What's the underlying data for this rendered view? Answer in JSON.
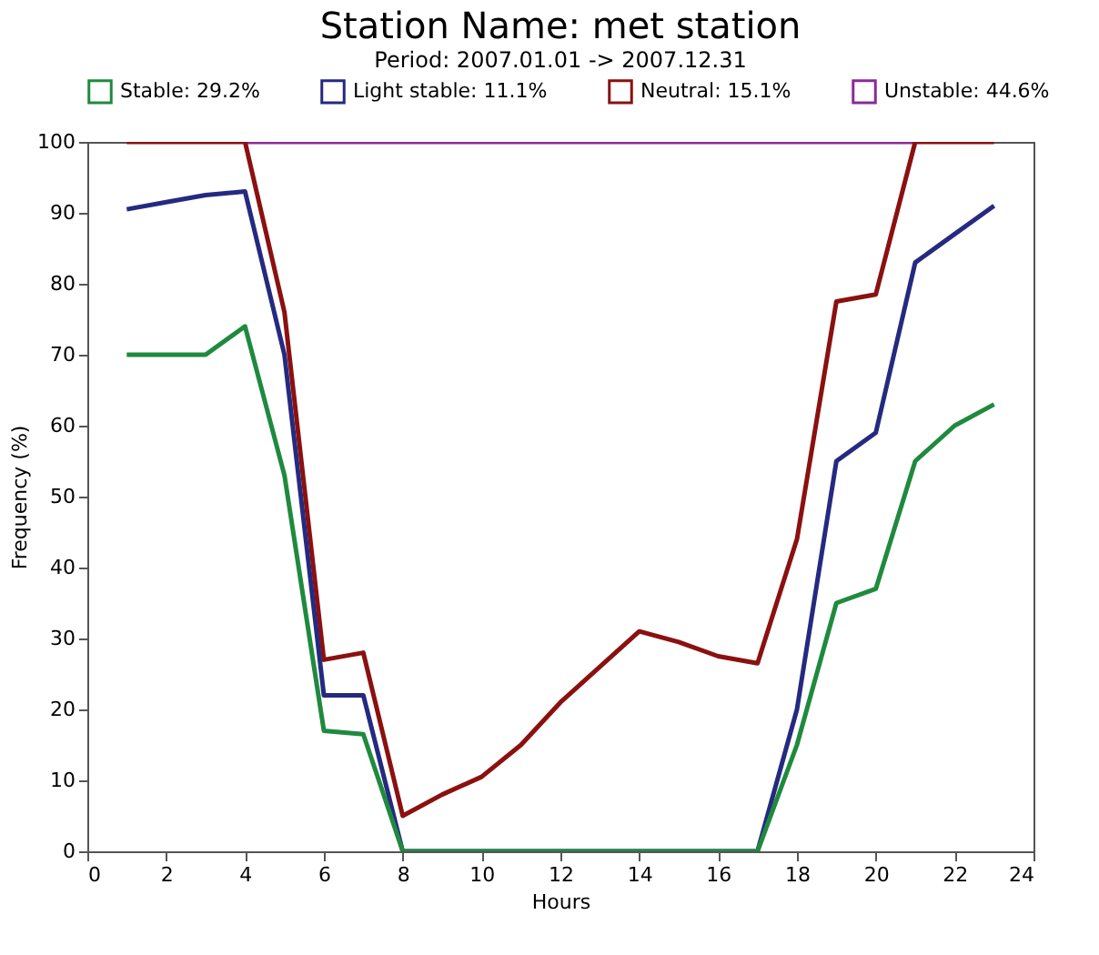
{
  "chart_data": {
    "type": "line",
    "title": "Station Name: met station",
    "subtitle": "Period: 2007.01.01 -> 2007.12.31",
    "xlabel": "Hours",
    "ylabel": "Frequency (%)",
    "x": [
      1,
      2,
      3,
      4,
      5,
      6,
      7,
      8,
      9,
      10,
      11,
      12,
      13,
      14,
      15,
      16,
      17,
      18,
      19,
      20,
      21,
      22,
      23
    ],
    "series": [
      {
        "name": "Stable: 29.2%",
        "color": "#1f8a3e",
        "values": [
          70,
          70,
          70,
          74,
          53,
          17,
          16.5,
          0,
          0,
          0,
          0,
          0,
          0,
          0,
          0,
          0,
          0,
          15,
          35,
          37,
          55,
          60,
          63
        ]
      },
      {
        "name": "Light stable: 11.1%",
        "color": "#252a80",
        "values": [
          90.5,
          91.5,
          92.5,
          93,
          70,
          22,
          22,
          0,
          0,
          0,
          0,
          0,
          0,
          0,
          0,
          0,
          0,
          20,
          55,
          59,
          83,
          87,
          91
        ]
      },
      {
        "name": "Neutral: 15.1%",
        "color": "#8b1010",
        "values": [
          100,
          100,
          100,
          100,
          76,
          27,
          28,
          5,
          8,
          10.5,
          15,
          21,
          26,
          31,
          29.5,
          27.5,
          26.5,
          44,
          77.5,
          78.5,
          100,
          100,
          100
        ]
      },
      {
        "name": "Unstable: 44.6%",
        "color": "#8b2a9a",
        "values": [
          null,
          null,
          null,
          100,
          100,
          100,
          100,
          100,
          100,
          100,
          100,
          100,
          100,
          100,
          100,
          100,
          100,
          100,
          100,
          100,
          100,
          null,
          null
        ]
      }
    ],
    "xlim": [
      0,
      24
    ],
    "xticks": [
      0,
      2,
      4,
      6,
      8,
      10,
      12,
      14,
      16,
      18,
      20,
      22,
      24
    ],
    "ylim": [
      0,
      100
    ],
    "yticks": [
      0,
      10,
      20,
      30,
      40,
      50,
      60,
      70,
      80,
      90,
      100
    ],
    "grid": false,
    "legend": "top",
    "marker": "none",
    "line_style": "solid"
  }
}
